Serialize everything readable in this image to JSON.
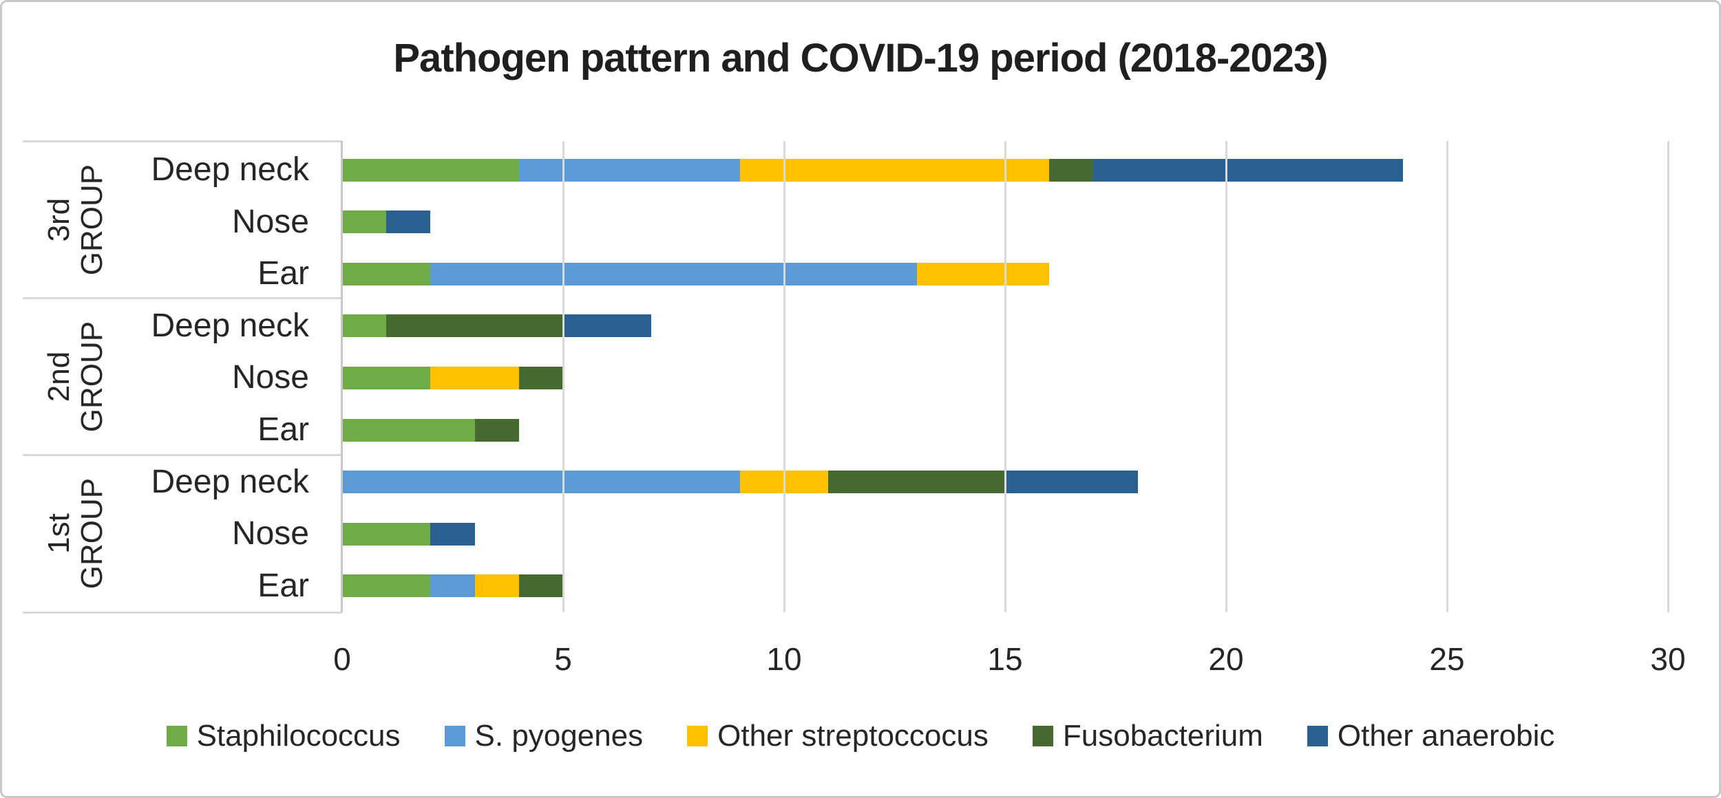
{
  "title": "Pathogen pattern and COVID-19 period (2018-2023)",
  "chart_data": {
    "type": "bar",
    "orientation": "horizontal-stacked",
    "title": "Pathogen pattern and COVID-19 period (2018-2023)",
    "x_axis": {
      "min": 0,
      "max": 30,
      "ticks": [
        0,
        5,
        10,
        15,
        20,
        25,
        30
      ],
      "gridlines": true
    },
    "series": [
      {
        "name": "Staphilococcus",
        "color": "#6FAC47"
      },
      {
        "name": "S. pyogenes",
        "color": "#5B9BD5"
      },
      {
        "name": "Other streptoccocus",
        "color": "#FFC000"
      },
      {
        "name": "Fusobacterium",
        "color": "#466930"
      },
      {
        "name": "Other anaerobic",
        "color": "#2A5F92"
      }
    ],
    "groups": [
      {
        "label_line1": "3rd",
        "label_line2": "GROUP",
        "rows": [
          {
            "category": "Deep neck",
            "values": [
              4,
              5,
              7,
              1,
              7
            ]
          },
          {
            "category": "Nose",
            "values": [
              1,
              0,
              0,
              0,
              1
            ]
          },
          {
            "category": "Ear",
            "values": [
              2,
              11,
              3,
              0,
              0
            ]
          }
        ]
      },
      {
        "label_line1": "2nd",
        "label_line2": "GROUP",
        "rows": [
          {
            "category": "Deep neck",
            "values": [
              1,
              0,
              0,
              4,
              2
            ]
          },
          {
            "category": "Nose",
            "values": [
              2,
              0,
              2,
              1,
              0
            ]
          },
          {
            "category": "Ear",
            "values": [
              3,
              0,
              0,
              1,
              0
            ]
          }
        ]
      },
      {
        "label_line1": "1st",
        "label_line2": "GROUP",
        "rows": [
          {
            "category": "Deep neck",
            "values": [
              0,
              9,
              2,
              4,
              3
            ]
          },
          {
            "category": "Nose",
            "values": [
              2,
              0,
              0,
              0,
              1
            ]
          },
          {
            "category": "Ear",
            "values": [
              2,
              1,
              1,
              1,
              0
            ]
          }
        ]
      }
    ],
    "legend": {
      "position": "bottom"
    }
  },
  "style_colors": {
    "gridline": "#d9d9d9",
    "axis_line": "#c6c6c6",
    "text": "#262626",
    "title_text": "#1f1f1f",
    "frame_border": "#c9c9c9"
  }
}
